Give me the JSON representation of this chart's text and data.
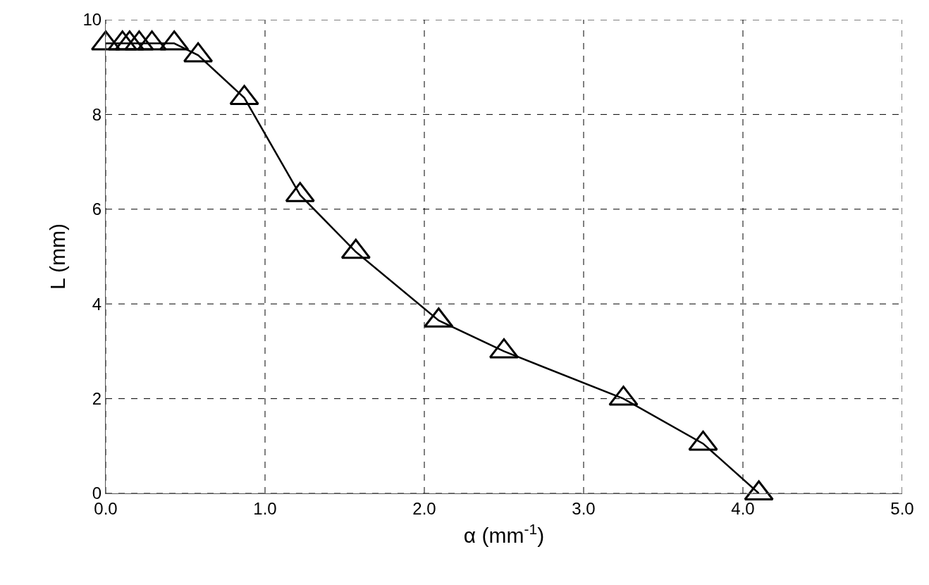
{
  "chart_data": {
    "type": "line",
    "xlabel": "α (mm$^{-1}$)",
    "ylabel": "L (mm)",
    "series": [
      {
        "color": "#000000",
        "x": [
          0,
          0.105,
          0.15,
          0.21,
          0.29,
          0.43,
          0.58,
          0.87,
          1.22,
          1.57,
          2.09,
          2.5,
          3.25,
          3.75,
          4.1
        ],
        "values": [
          9.5,
          9.5,
          9.5,
          9.5,
          9.5,
          9.5,
          9.25,
          8.35,
          6.3,
          5.1,
          3.65,
          3.0,
          2.0,
          1.05,
          0
        ]
      }
    ],
    "xlim": [
      0,
      5
    ],
    "xticks": [
      {
        "value": 0,
        "label": "0.0"
      },
      {
        "value": 1,
        "label": "1.0"
      },
      {
        "value": 2,
        "label": "2.0"
      },
      {
        "value": 3,
        "label": "3.0"
      },
      {
        "value": 4,
        "label": "4.0"
      },
      {
        "value": 5,
        "label": "5.0"
      }
    ],
    "ylim": [
      0,
      10
    ],
    "yticks": [
      0,
      2,
      4,
      6,
      8,
      10
    ],
    "grid": true,
    "marker": "triangle",
    "line_style": "solid"
  }
}
